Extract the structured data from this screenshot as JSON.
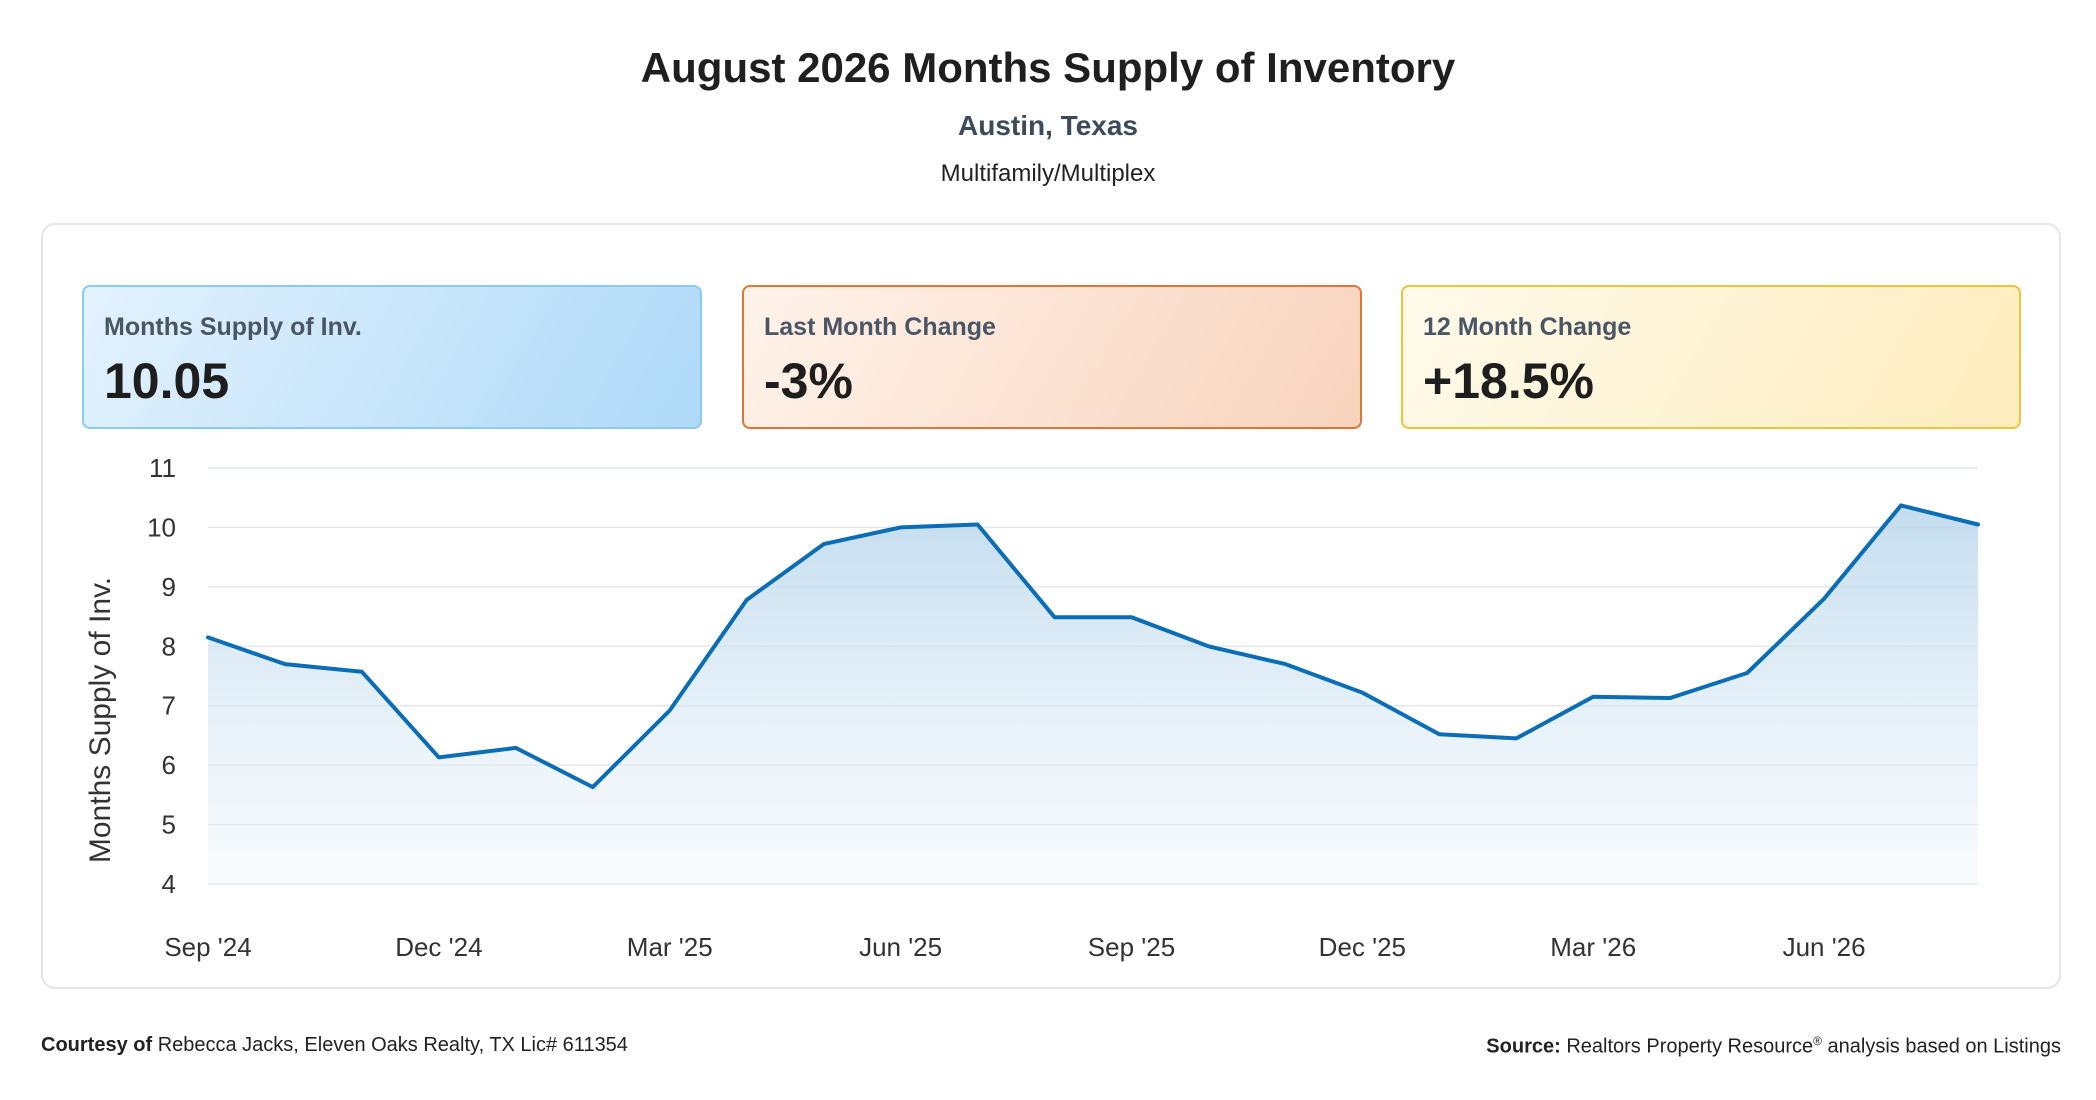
{
  "header": {
    "title": "August 2026 Months Supply of Inventory",
    "location": "Austin, Texas",
    "category": "Multifamily/Multiplex"
  },
  "cards": [
    {
      "label": "Months Supply of Inv.",
      "value": "10.05"
    },
    {
      "label": "Last Month Change",
      "value": "-3%"
    },
    {
      "label": "12 Month Change",
      "value": "+18.5%"
    }
  ],
  "chart_data": {
    "type": "area",
    "title": "",
    "xlabel": "",
    "ylabel": "Months Supply of Inv.",
    "ylim": [
      4,
      11
    ],
    "yticks": [
      4,
      5,
      6,
      7,
      8,
      9,
      10,
      11
    ],
    "grid": true,
    "x": [
      "Sep '24",
      "Oct '24",
      "Nov '24",
      "Dec '24",
      "Jan '25",
      "Feb '25",
      "Mar '25",
      "Apr '25",
      "May '25",
      "Jun '25",
      "Jul '25",
      "Aug '25",
      "Sep '25",
      "Oct '25",
      "Nov '25",
      "Dec '25",
      "Jan '26",
      "Feb '26",
      "Mar '26",
      "Apr '26",
      "May '26",
      "Jun '26",
      "Jul '26",
      "Aug '26"
    ],
    "xtick_labels": [
      "Sep '24",
      "Dec '24",
      "Mar '25",
      "Jun '25",
      "Sep '25",
      "Dec '25",
      "Mar '26",
      "Jun '26"
    ],
    "series": [
      {
        "values": [
          8.15,
          7.7,
          7.57,
          6.13,
          6.29,
          5.63,
          6.92,
          8.78,
          9.72,
          10.0,
          10.05,
          8.49,
          8.49,
          8.0,
          7.7,
          7.22,
          6.52,
          6.45,
          7.15,
          7.13,
          7.55,
          8.8,
          10.37,
          10.05
        ],
        "color": "#0a6db5"
      }
    ]
  },
  "footer": {
    "courtesy_label": "Courtesy of",
    "courtesy_text": "Rebecca Jacks, Eleven Oaks Realty, TX Lic# 611354",
    "source_label": "Source:",
    "source_name": "Realtors Property Resource",
    "source_mark": "®",
    "source_text": "analysis based on Listings"
  }
}
